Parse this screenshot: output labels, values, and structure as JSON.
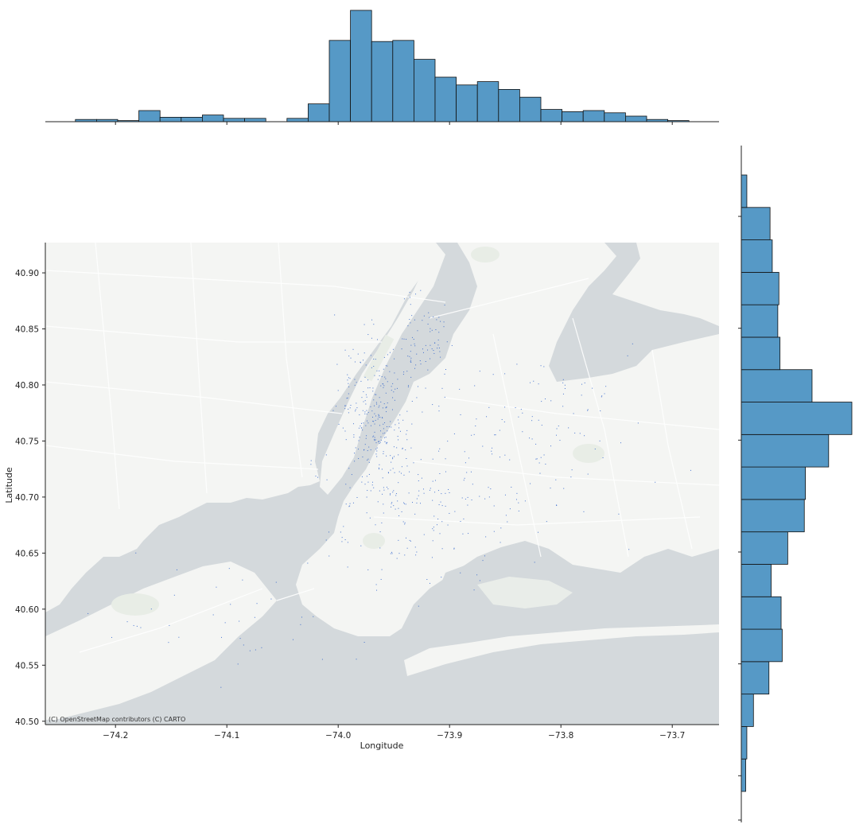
{
  "chart_data": {
    "type": "joint-scatter-histogram",
    "xlabel": "Longitude",
    "ylabel": "Latitude",
    "xlim": [
      -74.263,
      -73.658
    ],
    "ylim": [
      40.497,
      40.927
    ],
    "x_ticks": [
      -74.2,
      -74.1,
      -74.0,
      -73.9,
      -73.8,
      -73.7
    ],
    "x_tick_labels": [
      "−74.2",
      "−74.1",
      "−74.0",
      "−73.9",
      "−73.8",
      "−73.7"
    ],
    "y_ticks": [
      40.5,
      40.55,
      40.6,
      40.65,
      40.7,
      40.75,
      40.8,
      40.85,
      40.9
    ],
    "y_tick_labels": [
      "40.50",
      "40.55",
      "40.60",
      "40.65",
      "40.70",
      "40.75",
      "40.80",
      "40.85",
      "40.90"
    ],
    "attribution": "(C) OpenStreetMap contributors (C) CARTO",
    "basemap_colors": {
      "land": "#f4f5f3",
      "water": "#d4d9dc",
      "parks": "#e8ede6",
      "roads": "#ffffff"
    },
    "bar_color": "#5699c6",
    "point_color": "#1f57c8",
    "marginal_x_hist": {
      "bin_edges": [
        -74.236,
        -74.217,
        -74.198,
        -74.179,
        -74.16,
        -74.141,
        -74.122,
        -74.103,
        -74.084,
        -74.065,
        -74.046,
        -74.027,
        -74.008,
        -73.989,
        -73.97,
        -73.951,
        -73.932,
        -73.913,
        -73.894,
        -73.875,
        -73.856,
        -73.837,
        -73.818,
        -73.799,
        -73.78,
        -73.761,
        -73.742,
        -73.723,
        -73.704,
        -73.685
      ],
      "counts": [
        2,
        2,
        1,
        10,
        4,
        4,
        6,
        3,
        3,
        0,
        3,
        16,
        73,
        100,
        72,
        73,
        56,
        40,
        33,
        36,
        29,
        22,
        11,
        9,
        10,
        8,
        5,
        2,
        1
      ]
    },
    "marginal_y_hist": {
      "bin_edges": [
        40.436,
        40.465,
        40.494,
        40.523,
        40.552,
        40.581,
        40.61,
        40.639,
        40.668,
        40.697,
        40.726,
        40.755,
        40.784,
        40.813,
        40.842,
        40.871,
        40.9,
        40.929,
        40.958,
        40.987
      ],
      "counts": [
        4,
        5,
        11,
        25,
        37,
        36,
        27,
        42,
        57,
        58,
        79,
        100,
        64,
        35,
        33,
        34,
        28,
        26,
        5
      ]
    }
  }
}
